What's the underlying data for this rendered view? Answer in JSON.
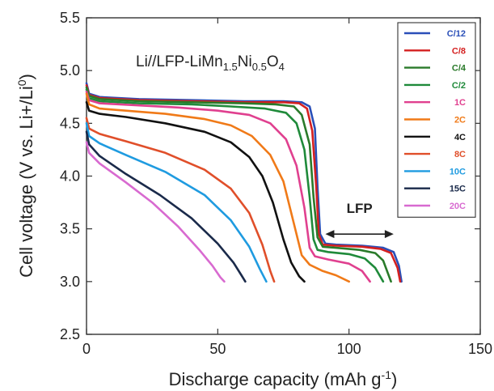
{
  "chart_data": {
    "type": "line",
    "title": "",
    "xlabel": "Discharge capacity (mAh g",
    "xlabel_sup": "-1",
    "xlabel_end": ")",
    "ylabel": "Cell voltage (V vs. Li+/Li",
    "ylabel_sup": "0",
    "ylabel_end": ")",
    "xlim": [
      0,
      150
    ],
    "ylim": [
      2.5,
      5.5
    ],
    "xticks": [
      "0",
      "50",
      "100",
      "150"
    ],
    "yticks": [
      "2.5",
      "3.0",
      "3.5",
      "4.0",
      "4.5",
      "5.0",
      "5.5"
    ],
    "grid": false,
    "legend_position": "top-right",
    "annotation": {
      "cell_prefix": "Li//LFP-LiMn",
      "sub1": "1.5",
      "mid": "Ni",
      "sub2": "0.5",
      "o": "O",
      "sub3": "4"
    },
    "lfp_label": "LFP",
    "lfp_arrow": {
      "x": [
        91,
        117
      ],
      "y": 3.45
    },
    "series": [
      {
        "name": "C/12",
        "color": "#2a4fb8",
        "x": [
          0,
          1,
          5,
          20,
          40,
          60,
          75,
          82,
          85,
          87,
          88,
          89,
          91,
          95,
          105,
          113,
          117,
          119,
          120
        ],
        "y": [
          4.88,
          4.78,
          4.75,
          4.73,
          4.72,
          4.71,
          4.71,
          4.7,
          4.66,
          4.45,
          3.9,
          3.45,
          3.36,
          3.35,
          3.34,
          3.32,
          3.28,
          3.15,
          3.0
        ]
      },
      {
        "name": "C/8",
        "color": "#d42020",
        "x": [
          0,
          1,
          5,
          20,
          40,
          60,
          75,
          81,
          84,
          86,
          87.5,
          88.5,
          90,
          95,
          105,
          112,
          116,
          118.5,
          119.5
        ],
        "y": [
          4.86,
          4.77,
          4.74,
          4.72,
          4.71,
          4.7,
          4.7,
          4.69,
          4.64,
          4.43,
          3.9,
          3.45,
          3.35,
          3.34,
          3.33,
          3.31,
          3.27,
          3.13,
          3.0
        ]
      },
      {
        "name": "C/4",
        "color": "#2a7a2a",
        "x": [
          0,
          1,
          5,
          20,
          40,
          60,
          72,
          79,
          82,
          85,
          86.5,
          88,
          90,
          95,
          104,
          110,
          113,
          116
        ],
        "y": [
          4.84,
          4.76,
          4.73,
          4.71,
          4.7,
          4.69,
          4.68,
          4.66,
          4.58,
          4.3,
          3.8,
          3.42,
          3.33,
          3.32,
          3.3,
          3.27,
          3.2,
          3.0
        ]
      },
      {
        "name": "C/2",
        "color": "#1f8a3a",
        "x": [
          0,
          1,
          5,
          20,
          40,
          55,
          68,
          76,
          80,
          83,
          85,
          86.5,
          88,
          92,
          100,
          106,
          110,
          113
        ],
        "y": [
          4.82,
          4.74,
          4.71,
          4.69,
          4.68,
          4.66,
          4.64,
          4.6,
          4.5,
          4.25,
          3.8,
          3.4,
          3.3,
          3.28,
          3.26,
          3.22,
          3.13,
          3.0
        ]
      },
      {
        "name": "1C",
        "color": "#e0408f",
        "x": [
          0,
          1,
          5,
          20,
          35,
          50,
          62,
          70,
          76,
          80,
          83,
          85,
          87,
          92,
          100,
          105,
          108
        ],
        "y": [
          4.8,
          4.72,
          4.69,
          4.67,
          4.65,
          4.62,
          4.58,
          4.5,
          4.35,
          4.1,
          3.7,
          3.32,
          3.24,
          3.21,
          3.17,
          3.1,
          3.0
        ]
      },
      {
        "name": "2C",
        "color": "#f07a18",
        "x": [
          0,
          1,
          5,
          15,
          30,
          45,
          55,
          63,
          70,
          75,
          79,
          82,
          85,
          90,
          95,
          100
        ],
        "y": [
          4.78,
          4.68,
          4.64,
          4.62,
          4.59,
          4.54,
          4.48,
          4.38,
          4.2,
          3.95,
          3.55,
          3.25,
          3.16,
          3.1,
          3.06,
          3.0
        ]
      },
      {
        "name": "4C",
        "color": "#111111",
        "x": [
          0,
          1,
          5,
          15,
          30,
          45,
          55,
          62,
          67,
          71,
          75,
          78,
          81,
          83
        ],
        "y": [
          4.7,
          4.62,
          4.59,
          4.56,
          4.5,
          4.42,
          4.32,
          4.18,
          4.0,
          3.75,
          3.4,
          3.18,
          3.05,
          3.0
        ]
      },
      {
        "name": "8C",
        "color": "#e04f2a",
        "x": [
          0,
          1,
          5,
          15,
          30,
          45,
          55,
          62,
          67,
          70,
          71.5
        ],
        "y": [
          4.55,
          4.45,
          4.4,
          4.33,
          4.22,
          4.06,
          3.88,
          3.65,
          3.35,
          3.1,
          3.0
        ]
      },
      {
        "name": "10C",
        "color": "#1f9be0",
        "x": [
          0,
          1,
          5,
          15,
          30,
          45,
          55,
          62,
          66,
          68.5
        ],
        "y": [
          4.5,
          4.38,
          4.31,
          4.2,
          4.04,
          3.82,
          3.58,
          3.33,
          3.12,
          3.0
        ]
      },
      {
        "name": "15C",
        "color": "#1a2a4a",
        "x": [
          0,
          1,
          5,
          15,
          28,
          40,
          50,
          56,
          59,
          60.5
        ],
        "y": [
          4.42,
          4.3,
          4.19,
          4.02,
          3.82,
          3.6,
          3.36,
          3.18,
          3.06,
          3.0
        ]
      },
      {
        "name": "20C",
        "color": "#d86ad0",
        "x": [
          0,
          1,
          5,
          15,
          25,
          35,
          43,
          48,
          51,
          52.5
        ],
        "y": [
          4.32,
          4.22,
          4.12,
          3.94,
          3.75,
          3.52,
          3.3,
          3.15,
          3.04,
          3.0
        ]
      }
    ]
  }
}
